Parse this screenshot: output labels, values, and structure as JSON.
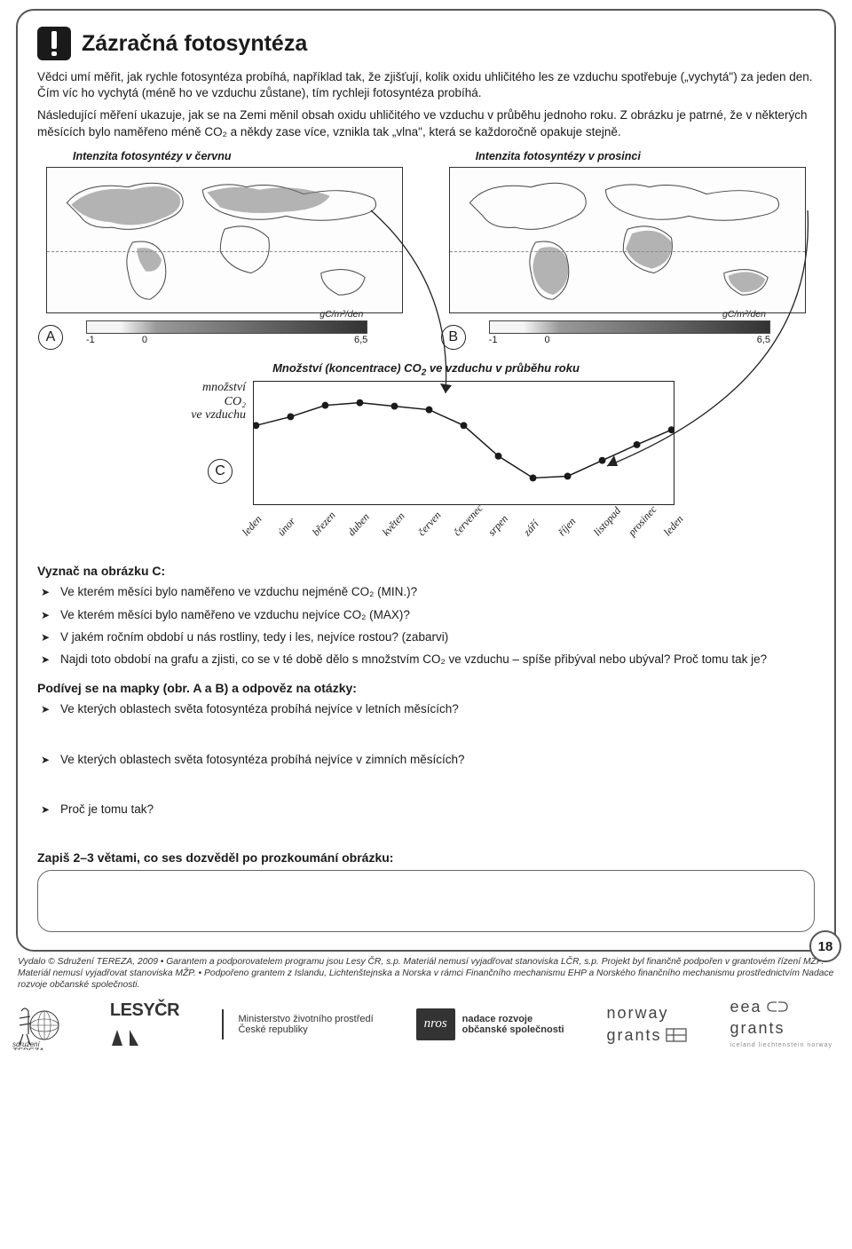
{
  "title": "Zázračná fotosyntéza",
  "intro_p1": "Vědci umí měřit, jak rychle fotosyntéza probíhá, například tak, že zjišťují, kolik oxidu uhličitého les ze vzduchu spotřebuje („vychytá\") za jeden den. Čím víc ho vychytá (méně ho ve vzduchu zůstane), tím rychleji fotosyntéza probíhá.",
  "intro_p2": "Následující měření ukazuje, jak se na Zemi měnil obsah oxidu uhličitého ve vzduchu v průběhu jednoho roku. Z obrázku je patrné, že v některých měsících bylo naměřeno méně CO₂ a někdy zase více, vznikla tak „vlna\", která se každoročně opakuje stejně.",
  "maps": {
    "left": {
      "caption": "Intenzita fotosyntézy v červnu",
      "letter": "A"
    },
    "right": {
      "caption": "Intenzita fotosyntézy v prosinci",
      "letter": "B"
    },
    "scale": {
      "unit": "gC/m²/den",
      "min": "-1",
      "zero": "0",
      "max": "6,5",
      "gradient_stops": [
        "#f5f5f5",
        "#999999",
        "#333333"
      ]
    }
  },
  "co2_chart": {
    "caption_left": "Množství (koncentrace) CO",
    "caption_sub": "2",
    "caption_right": " ve vzduchu v průběhu roku",
    "ylabel_lines": [
      "množství",
      "CO₂",
      "ve vzduchu"
    ],
    "letter": "C",
    "months": [
      "leden",
      "únor",
      "březen",
      "duben",
      "květen",
      "červen",
      "červenec",
      "srpen",
      "září",
      "říjen",
      "listopad",
      "prosinec",
      "leden"
    ],
    "values": [
      50,
      40,
      27,
      24,
      28,
      32,
      50,
      85,
      110,
      108,
      90,
      72,
      55
    ],
    "height": 140,
    "line_color": "#1a1a1a",
    "dot_radius": 4
  },
  "tasks": {
    "heading_c": "Vyznač na obrázku C:",
    "list_c": [
      "Ve kterém měsíci bylo naměřeno ve vzduchu nejméně CO₂ (MIN.)?",
      "Ve kterém měsíci bylo naměřeno ve vzduchu nejvíce CO₂ (MAX)?",
      "V jakém ročním období u nás rostliny, tedy i les, nejvíce rostou? (zabarvi)",
      "Najdi toto období na grafu a zjisti, co se v té době dělo s množstvím CO₂ ve vzduchu – spíše přibýval nebo ubýval? Proč tomu tak je?"
    ],
    "heading_maps": "Podívej se na mapky (obr. A a B) a odpověz na otázky:",
    "list_maps": [
      "Ve kterých oblastech světa fotosyntéza probíhá nejvíce v letních měsících?",
      "Ve kterých oblastech světa fotosyntéza probíhá nejvíce v zimních měsících?",
      "Proč je tomu tak?"
    ],
    "heading_summary": "Zapiš 2–3 větami, co ses dozvěděl po prozkoumání obrázku:"
  },
  "page_number": "18",
  "footer_credits": "Vydalo © Sdružení TEREZA, 2009 • Garantem a podporovatelem programu jsou Lesy ČR, s.p. Materiál nemusí vyjadřovat stanoviska LČR, s.p. Projekt byl finančně podpořen v grantovém řízení MŽP. Materiál nemusí vyjadřovat stanoviska MŽP. • Podpořeno grantem z Islandu, Lichtenštejnska a Norska v rámci Finančního mechanismu EHP a Norského finančního mechanismu prostřednictvím Nadace rozvoje občanské společnosti.",
  "logos": {
    "tereza": "sdružení TEREZA",
    "lesy": "LESYČR",
    "mzp_l1": "Ministerstvo životního prostředí",
    "mzp_l2": "České republiky",
    "nros_box": "nros",
    "nros_l1": "nadace rozvoje",
    "nros_l2": "občanské společnosti",
    "norway_l1": "norway",
    "norway_l2": "grants",
    "eea_l1": "eea",
    "eea_l2": "grants",
    "eea_sub": "iceland liechtenstein norway"
  }
}
